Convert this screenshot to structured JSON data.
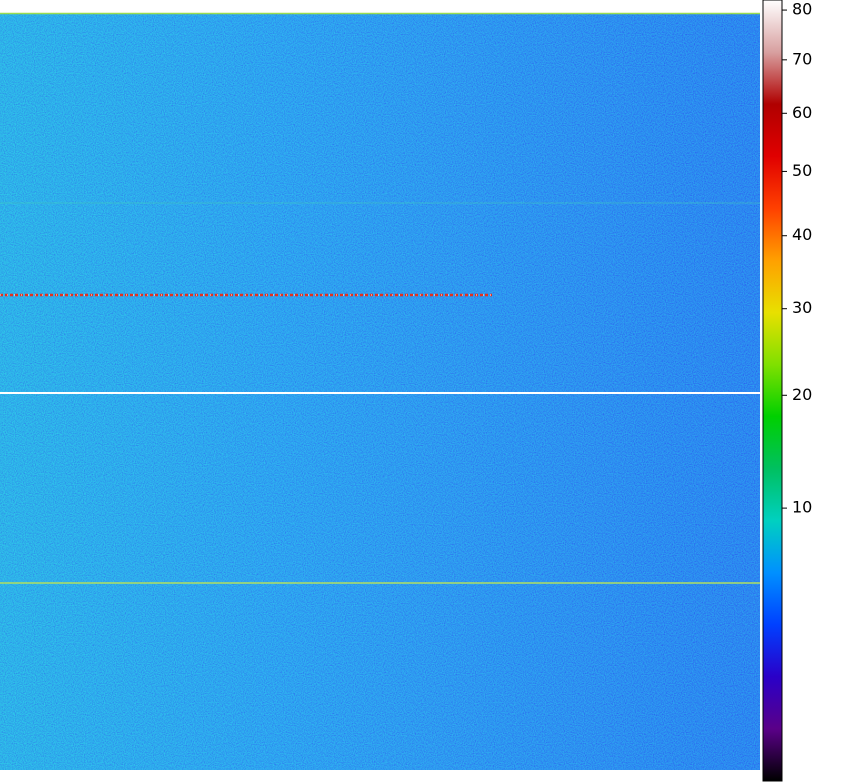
{
  "chart_data": {
    "type": "image",
    "colorbar": {
      "scale": "sqrt",
      "clim": [
        0,
        82
      ],
      "ticks": [
        10,
        20,
        30,
        40,
        50,
        60,
        70,
        80
      ],
      "colormap": [
        "#000000",
        "#5a0088",
        "#2a00c8",
        "#0040ff",
        "#0090ff",
        "#00d0c0",
        "#00c060",
        "#00d000",
        "#80e000",
        "#e8e000",
        "#ffa000",
        "#ff4000",
        "#e00000",
        "#b00000",
        "#d8a0a0",
        "#ffffff"
      ]
    }
  }
}
